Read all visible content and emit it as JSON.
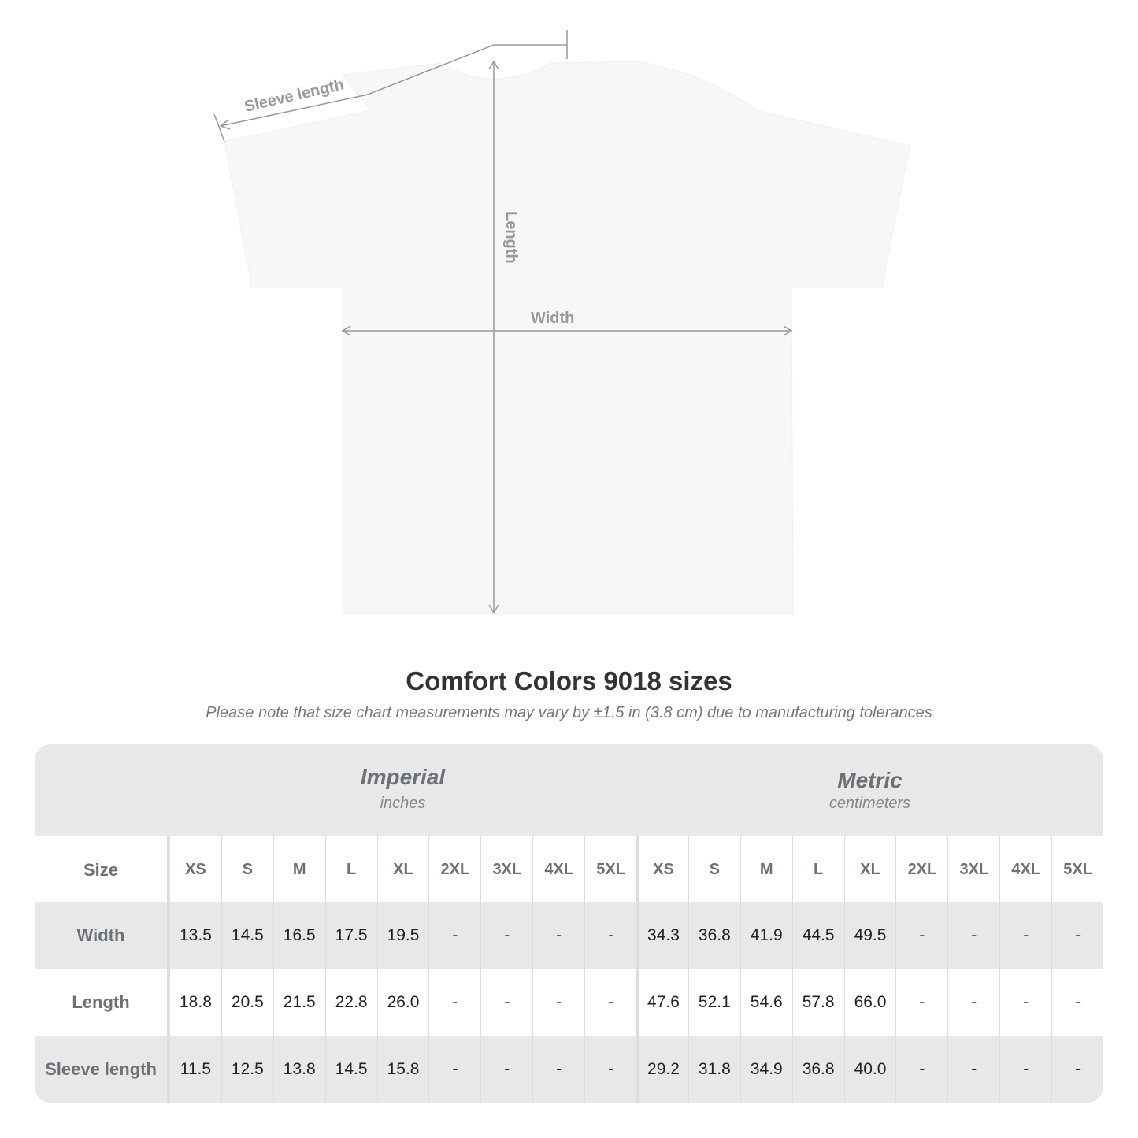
{
  "diagram": {
    "labels": {
      "sleeve": "Sleeve length",
      "length": "Length",
      "width": "Width"
    }
  },
  "title": "Comfort Colors 9018 sizes",
  "note": "Please note that size chart measurements may vary by ±1.5 in (3.8 cm) due to manufacturing tolerances",
  "table": {
    "imperial": {
      "title": "Imperial",
      "unit": "inches"
    },
    "metric": {
      "title": "Metric",
      "unit": "centimeters"
    },
    "size_label": "Size",
    "sizes": [
      "XS",
      "S",
      "M",
      "L",
      "XL",
      "2XL",
      "3XL",
      "4XL",
      "5XL"
    ],
    "rows": [
      {
        "label": "Width",
        "imperial": [
          "13.5",
          "14.5",
          "16.5",
          "17.5",
          "19.5",
          "-",
          "-",
          "-",
          "-"
        ],
        "metric": [
          "34.3",
          "36.8",
          "41.9",
          "44.5",
          "49.5",
          "-",
          "-",
          "-",
          "-"
        ]
      },
      {
        "label": "Length",
        "imperial": [
          "18.8",
          "20.5",
          "21.5",
          "22.8",
          "26.0",
          "-",
          "-",
          "-",
          "-"
        ],
        "metric": [
          "47.6",
          "52.1",
          "54.6",
          "57.8",
          "66.0",
          "-",
          "-",
          "-",
          "-"
        ]
      },
      {
        "label": "Sleeve length",
        "imperial": [
          "11.5",
          "12.5",
          "13.8",
          "14.5",
          "15.8",
          "-",
          "-",
          "-",
          "-"
        ],
        "metric": [
          "29.2",
          "31.8",
          "34.9",
          "36.8",
          "40.0",
          "-",
          "-",
          "-",
          "-"
        ]
      }
    ]
  }
}
